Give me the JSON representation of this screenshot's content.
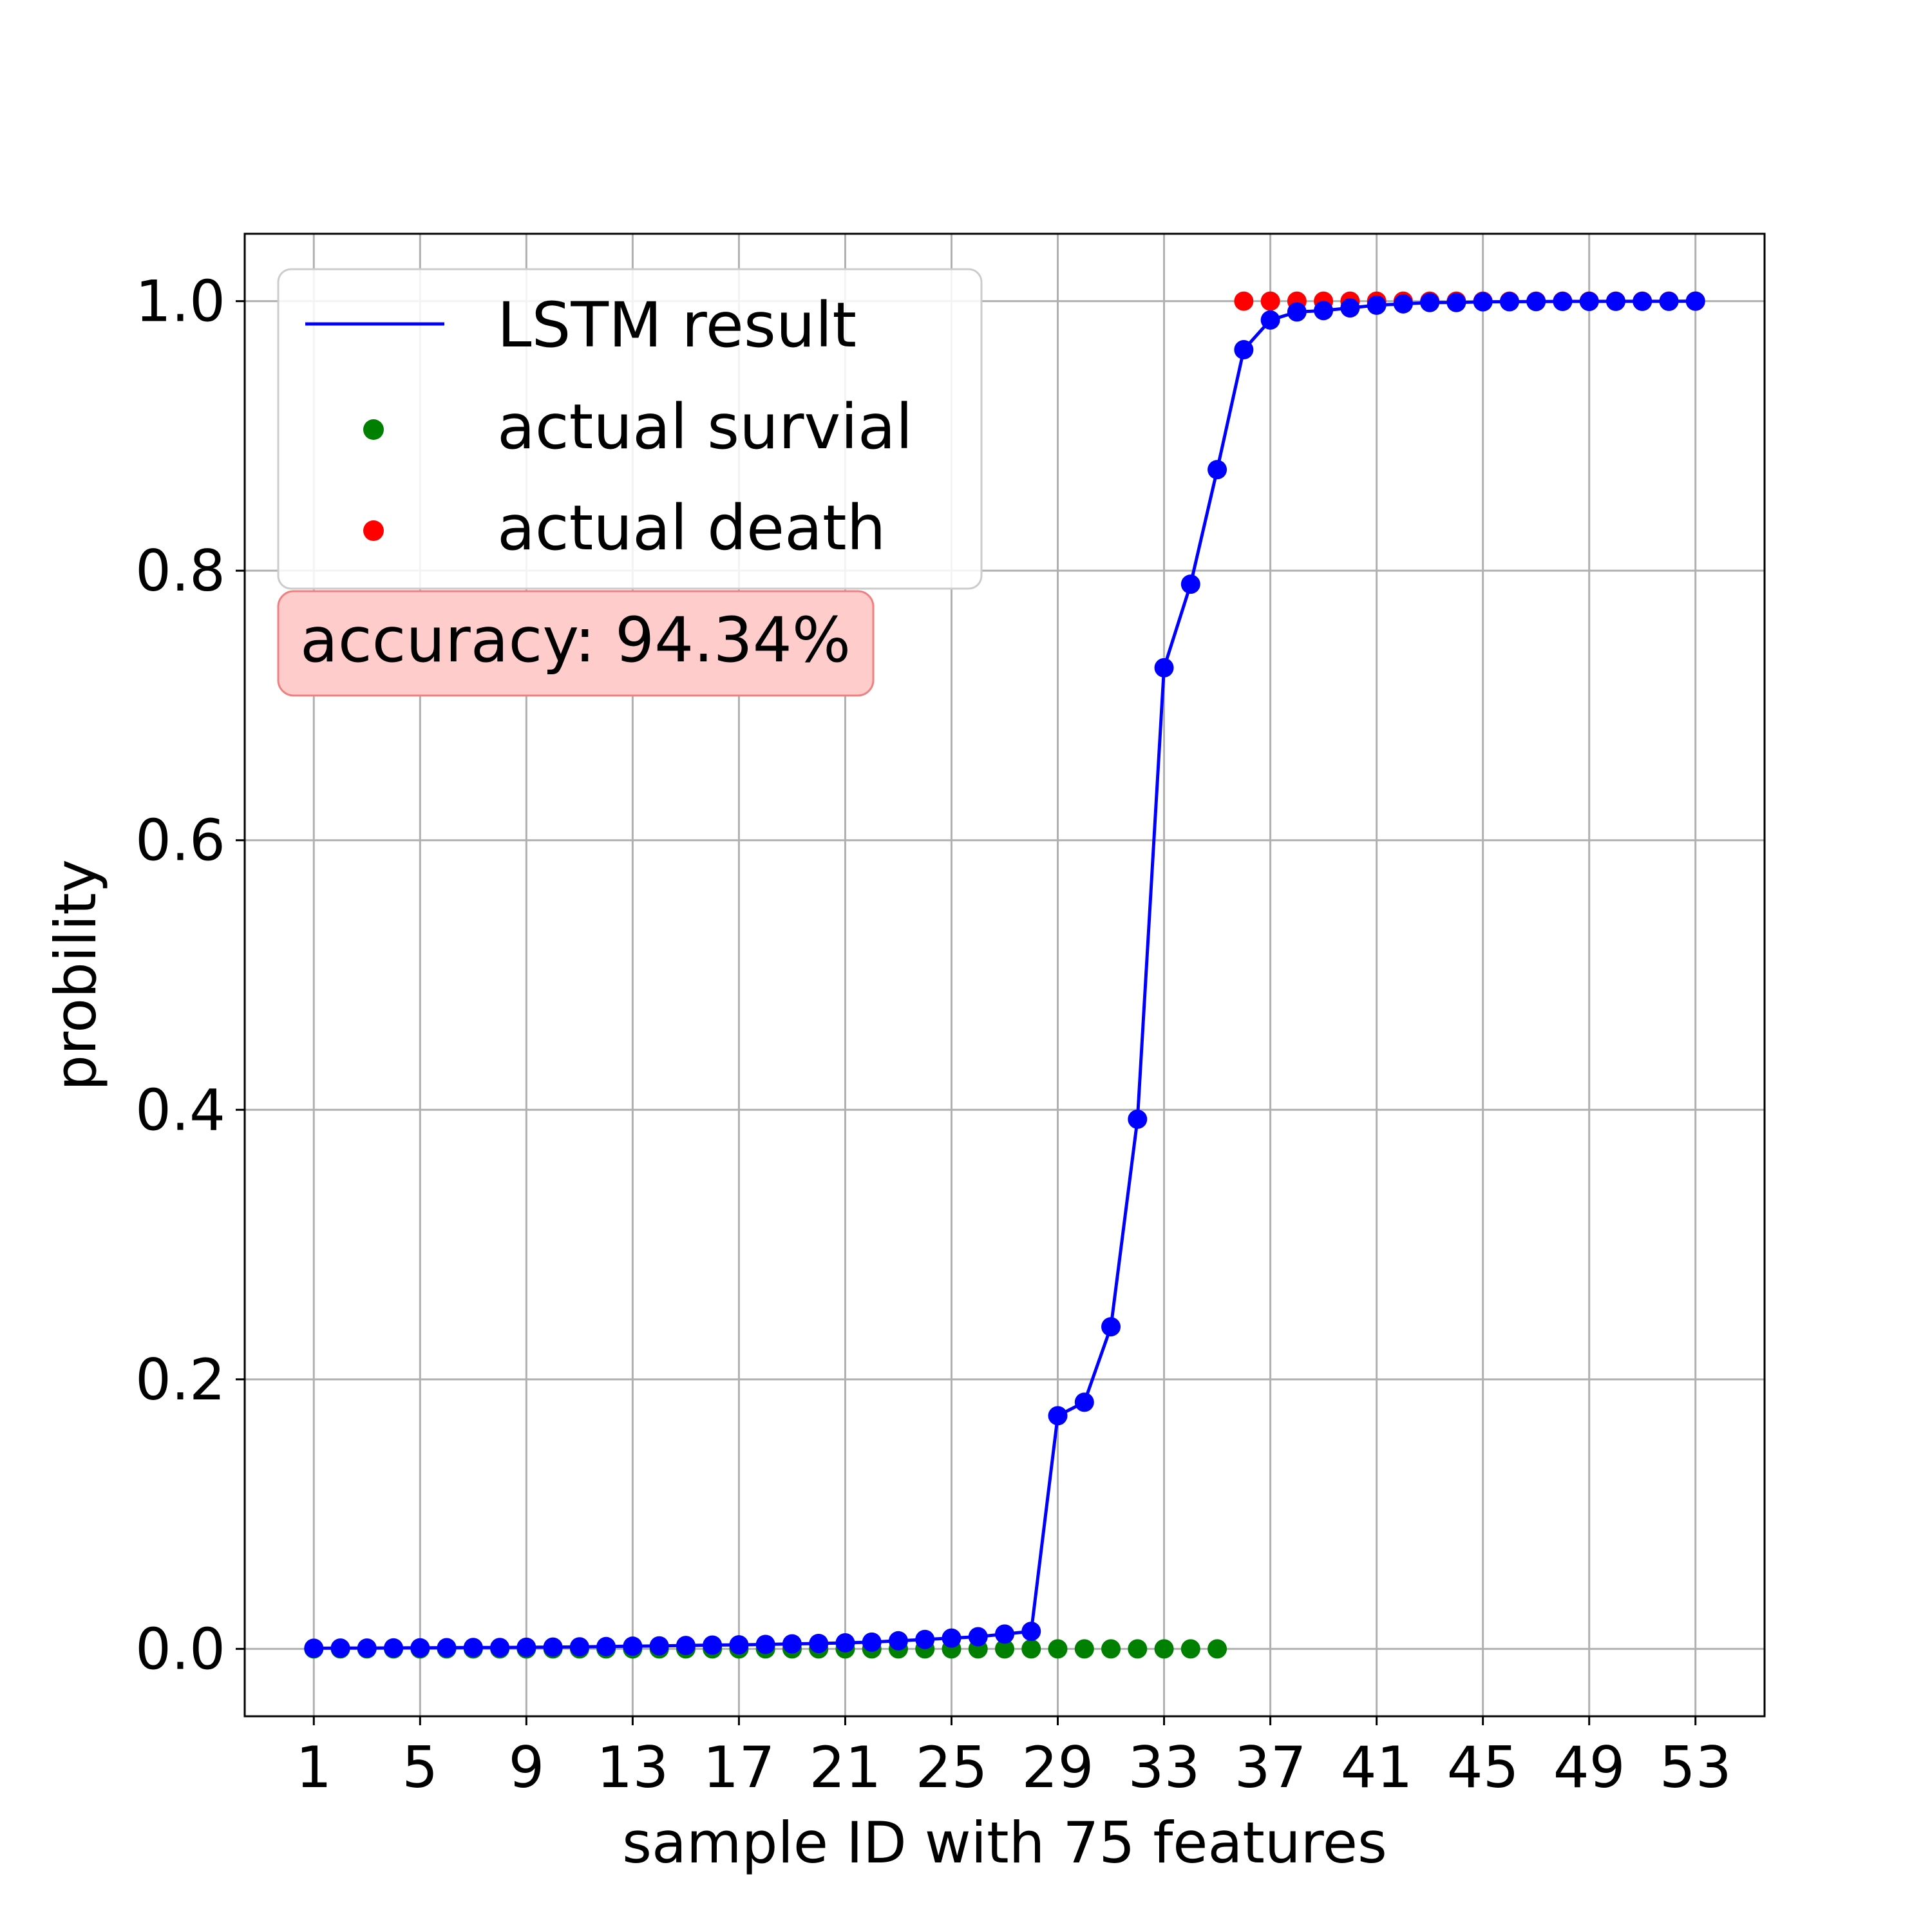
{
  "chart_data": {
    "type": "line",
    "xlabel": "sample ID with 75 features",
    "ylabel": "probility",
    "xlim": [
      -1.6,
      55.6
    ],
    "ylim": [
      -0.05,
      1.05
    ],
    "xticks": [
      1,
      5,
      9,
      13,
      17,
      21,
      25,
      29,
      33,
      37,
      41,
      45,
      49,
      53
    ],
    "yticks": [
      0.0,
      0.2,
      0.4,
      0.6,
      0.8,
      1.0
    ],
    "ytick_labels": [
      "0.0",
      "0.2",
      "0.4",
      "0.6",
      "0.8",
      "1.0"
    ],
    "grid": true,
    "legend_position": "top-left",
    "series": [
      {
        "name": "LSTM result",
        "kind": "line",
        "color": "#0000ff",
        "x": [
          1,
          2,
          3,
          4,
          5,
          6,
          7,
          8,
          9,
          10,
          11,
          12,
          13,
          14,
          15,
          16,
          17,
          18,
          19,
          20,
          21,
          22,
          23,
          24,
          25,
          26,
          27,
          28,
          29,
          30,
          31,
          32,
          33,
          34,
          35,
          36,
          37,
          38,
          39,
          40,
          41,
          42,
          43,
          44,
          45,
          46,
          47,
          48,
          49,
          50,
          51,
          52,
          53
        ],
        "values": [
          0.0005,
          0.0006,
          0.0006,
          0.0007,
          0.0008,
          0.0009,
          0.001,
          0.001,
          0.0012,
          0.0013,
          0.0015,
          0.0017,
          0.002,
          0.0022,
          0.0025,
          0.0028,
          0.003,
          0.0033,
          0.0037,
          0.004,
          0.0045,
          0.005,
          0.006,
          0.007,
          0.008,
          0.009,
          0.011,
          0.013,
          0.173,
          0.183,
          0.239,
          0.393,
          0.728,
          0.79,
          0.875,
          0.964,
          0.986,
          0.992,
          0.993,
          0.995,
          0.997,
          0.998,
          0.999,
          0.999,
          0.9995,
          0.9996,
          0.9997,
          0.9998,
          0.9998,
          0.9999,
          0.9999,
          0.9999,
          1.0
        ]
      },
      {
        "name": "actual survial",
        "kind": "scatter",
        "color": "#008000",
        "x": [
          1,
          2,
          3,
          4,
          5,
          6,
          7,
          8,
          9,
          10,
          11,
          12,
          13,
          14,
          15,
          16,
          17,
          18,
          19,
          20,
          21,
          22,
          23,
          24,
          25,
          26,
          27,
          28,
          29,
          30,
          31,
          32,
          33,
          34,
          35
        ],
        "values": [
          0,
          0,
          0,
          0,
          0,
          0,
          0,
          0,
          0,
          0,
          0,
          0,
          0,
          0,
          0,
          0,
          0,
          0,
          0,
          0,
          0,
          0,
          0,
          0,
          0,
          0,
          0,
          0,
          0,
          0,
          0,
          0,
          0,
          0,
          0
        ]
      },
      {
        "name": "actual death",
        "kind": "scatter",
        "color": "#ff0000",
        "x": [
          36,
          37,
          38,
          39,
          40,
          41,
          42,
          43,
          44,
          45,
          46,
          47,
          48,
          49,
          50,
          51,
          52,
          53
        ],
        "values": [
          1,
          1,
          1,
          1,
          1,
          1,
          1,
          1,
          1,
          1,
          1,
          1,
          1,
          1,
          1,
          1,
          1,
          1
        ]
      }
    ],
    "annotation": {
      "text": "accuracy: 94.34%",
      "box_color": "#ffcccc",
      "edge_color": "#f08080"
    }
  }
}
